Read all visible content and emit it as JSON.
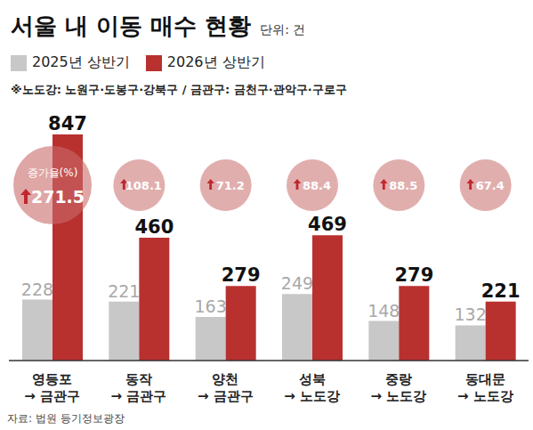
{
  "chart_data": {
    "type": "bar",
    "title": "서울 내 이동 매수 현황",
    "unit": "단위: 건",
    "note": "※노도강: 노원구·도봉구·강북구 / 금관구: 금천구·관악구·구로구",
    "source": "자료: 법원 등기정보광장",
    "categories": [
      "영등포\n→ 금관구",
      "동작\n→ 금관구",
      "양천\n→ 금관구",
      "성북\n→ 노도강",
      "중랑\n→ 노도강",
      "동대문\n→ 노도강"
    ],
    "series": [
      {
        "name": "2025년 상반기",
        "color": "#c8c8c8",
        "values": [
          228,
          221,
          163,
          249,
          148,
          132
        ]
      },
      {
        "name": "2026년 상반기",
        "color": "#b8312f",
        "values": [
          847,
          460,
          279,
          469,
          279,
          221
        ]
      }
    ],
    "growth_rates": {
      "label": "증가율(%)",
      "values": [
        271.5,
        108.1,
        71.2,
        88.4,
        88.5,
        67.4
      ]
    },
    "ylim": [
      0,
      900
    ],
    "legend": "top-left",
    "data_labels": true,
    "tick_labels": "x",
    "grid": false
  }
}
